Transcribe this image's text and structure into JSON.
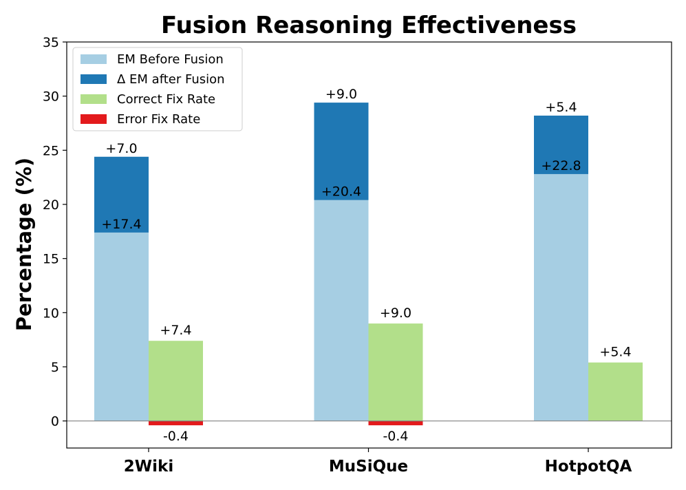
{
  "chart_data": {
    "type": "bar",
    "title": "Fusion Reasoning Effectiveness",
    "xlabel": "",
    "ylabel": "Percentage (%)",
    "ylim": [
      -2.5,
      35
    ],
    "yticks": [
      0,
      5,
      10,
      15,
      20,
      25,
      30,
      35
    ],
    "categories": [
      "2Wiki",
      "MuSiQue",
      "HotpotQA"
    ],
    "grid": false,
    "legend_position": "top-left",
    "series": [
      {
        "name": "EM Before Fusion",
        "values": [
          17.4,
          20.4,
          22.8
        ],
        "labels": [
          "+17.4",
          "+20.4",
          "+22.8"
        ],
        "color": "#a6cee3",
        "stack": "em"
      },
      {
        "name": "Δ EM after Fusion",
        "values": [
          7.0,
          9.0,
          5.4
        ],
        "labels": [
          "+7.0",
          "+9.0",
          "+5.4"
        ],
        "color": "#1f78b4",
        "stack": "em"
      },
      {
        "name": "Correct Fix Rate",
        "values": [
          7.4,
          9.0,
          5.4
        ],
        "labels": [
          "+7.4",
          "+9.0",
          "+5.4"
        ],
        "color": "#b2df8a",
        "stack": "fix"
      },
      {
        "name": "Error Fix Rate",
        "values": [
          -0.4,
          -0.4,
          null
        ],
        "labels": [
          "-0.4",
          "-0.4",
          ""
        ],
        "color": "#e31a1c",
        "stack": "fix"
      }
    ]
  }
}
